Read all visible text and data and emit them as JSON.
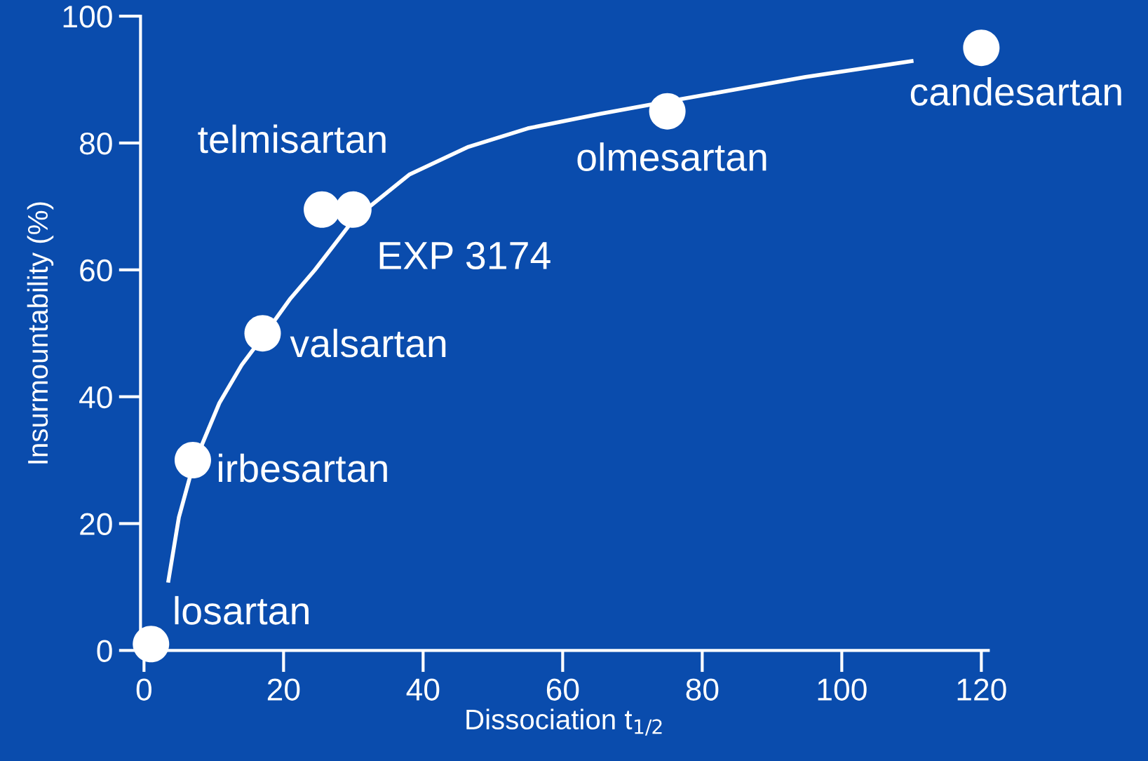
{
  "chart_data": {
    "type": "scatter",
    "xlabel": "Dissociation t$_{1/2}$",
    "ylabel": "Insurmountability (%)",
    "xlim": [
      -0.5,
      121
    ],
    "ylim": [
      0,
      100
    ],
    "xticks": [
      0,
      20,
      40,
      60,
      80,
      100,
      120
    ],
    "yticks": [
      0,
      20,
      40,
      60,
      80,
      100
    ],
    "grid": false,
    "legend": false,
    "series": [
      {
        "color": "#ffffff",
        "marker": "circle",
        "x": [
          1,
          7,
          17,
          25.5,
          30,
          75,
          120
        ],
        "values": [
          1,
          30,
          50,
          69.5,
          69.5,
          85,
          95
        ]
      },
      {
        "type": "line",
        "color": "#ffffff",
        "marker": "none",
        "line_style": "solid",
        "x": [
          3.5,
          5,
          7,
          10.8,
          14,
          17.4,
          21,
          24.5,
          30.1,
          38,
          46.5,
          55,
          65.4,
          75.3,
          94.8,
          110
        ],
        "values": [
          11,
          21,
          29,
          39,
          45,
          50,
          55.5,
          60,
          68,
          75,
          79.4,
          82.3,
          84.6,
          86.6,
          90.4,
          92.9
        ]
      }
    ],
    "annotations": [
      {
        "text": "losartan",
        "x": 1,
        "y": 1
      },
      {
        "text": "irbesartan",
        "x": 7,
        "y": 30
      },
      {
        "text": "valsartan",
        "x": 17,
        "y": 50
      },
      {
        "text": "telmisartan",
        "x": 25.5,
        "y": 69.5
      },
      {
        "text": "EXP 3174",
        "x": 30,
        "y": 69.5
      },
      {
        "text": "olmesartan",
        "x": 75,
        "y": 85
      },
      {
        "text": "candesartan",
        "x": 120,
        "y": 95
      }
    ]
  }
}
